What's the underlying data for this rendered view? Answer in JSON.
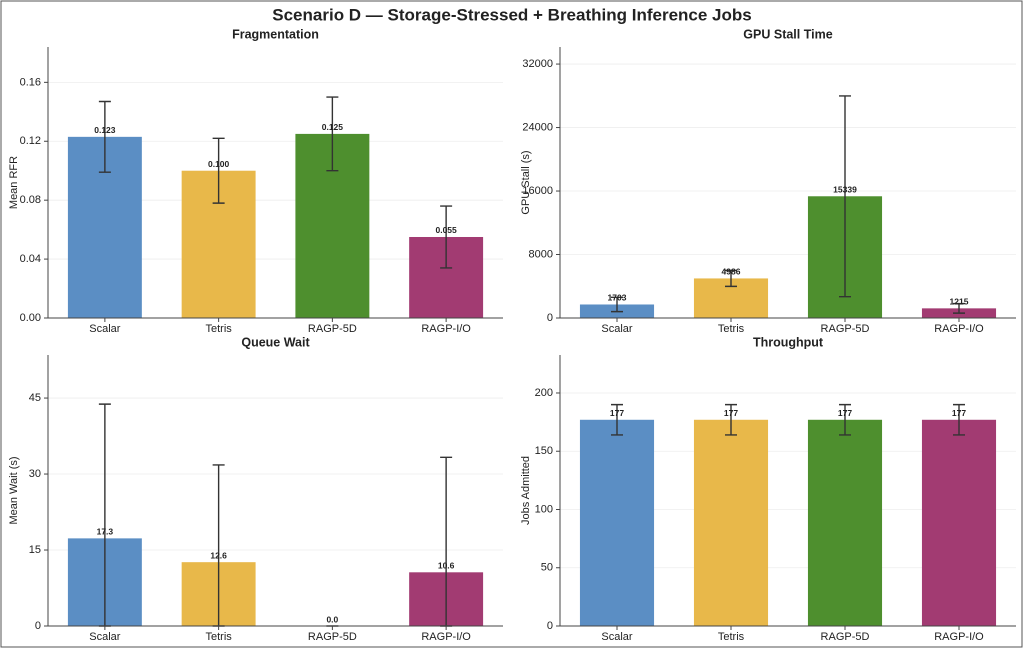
{
  "title": "Scenario D — Storage-Stressed + Breathing Inference Jobs",
  "chart_data": [
    {
      "type": "bar",
      "title": "Fragmentation",
      "y_label": "Mean RFR",
      "categories": [
        "Scalar",
        "Tetris",
        "RAGP-5D",
        "RAGP-I/O"
      ],
      "values": [
        0.123,
        0.1,
        0.125,
        0.055
      ],
      "value_labels": [
        "0.123",
        "0.100",
        "0.125",
        "0.055"
      ],
      "errors": [
        0.024,
        0.022,
        0.025,
        0.021
      ],
      "colors": [
        "#5b8ec4",
        "#e8b84a",
        "#4e8f2e",
        "#a23b72"
      ],
      "ylim": [
        0,
        0.184
      ],
      "yticks": [
        {
          "value": 0,
          "label": "0.00"
        },
        0.04,
        0.08,
        0.12,
        0.16
      ],
      "grid": true
    },
    {
      "type": "bar",
      "title": "GPU Stall Time",
      "y_label": "GPU Stall (s)",
      "categories": [
        "Scalar",
        "Tetris",
        "RAGP-5D",
        "RAGP-I/O"
      ],
      "values": [
        1703,
        4986,
        15339,
        1215
      ],
      "errors": [
        900,
        1000,
        12650,
        600
      ],
      "colors": [
        "#5b8ec4",
        "#e8b84a",
        "#4e8f2e",
        "#a23b72"
      ],
      "ylim": [
        0,
        34150
      ],
      "yticks": [
        0,
        8000,
        16000,
        24000,
        32000
      ],
      "grid": true
    },
    {
      "type": "bar",
      "title": "Queue Wait",
      "y_label": "Mean Wait (s)",
      "categories": [
        "Scalar",
        "Tetris",
        "RAGP-5D",
        "RAGP-I/O"
      ],
      "values": [
        17.3,
        12.6,
        0,
        10.6
      ],
      "value_labels": [
        "17.3",
        "12.6",
        "0.0",
        "10.6"
      ],
      "errors": [
        26.5,
        19.2,
        0,
        22.7
      ],
      "colors": [
        "#5b8ec4",
        "#e8b84a",
        "#4e8f2e",
        "#a23b72"
      ],
      "ylim": [
        0,
        53.5
      ],
      "yticks": [
        0,
        15,
        30,
        45
      ],
      "grid": true
    },
    {
      "type": "bar",
      "title": "Throughput",
      "y_label": "Jobs Admitted",
      "categories": [
        "Scalar",
        "Tetris",
        "RAGP-5D",
        "RAGP-I/O"
      ],
      "values": [
        177,
        177,
        177,
        177
      ],
      "errors": [
        13,
        13,
        13,
        13
      ],
      "colors": [
        "#5b8ec4",
        "#e8b84a",
        "#4e8f2e",
        "#a23b72"
      ],
      "ylim": [
        0,
        232.6
      ],
      "yticks": [
        0,
        50,
        100,
        150,
        200
      ],
      "grid": true
    }
  ]
}
